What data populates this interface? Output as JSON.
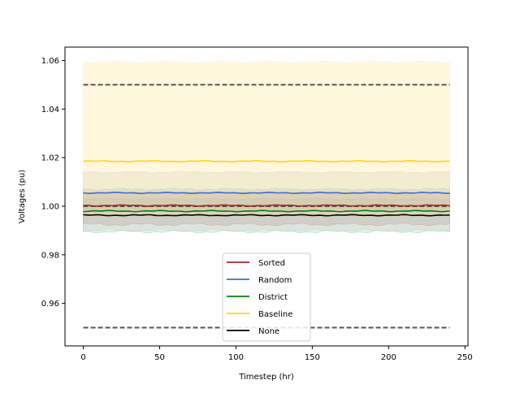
{
  "chart_data": {
    "type": "line",
    "xlabel": "Timestep (hr)",
    "ylabel": "Voltages (pu)",
    "xlim": [
      -12,
      252
    ],
    "ylim": [
      0.9425,
      1.0655
    ],
    "xticks": [
      0,
      50,
      100,
      150,
      200,
      250
    ],
    "yticks": [
      0.96,
      0.98,
      1.0,
      1.02,
      1.04,
      1.06
    ],
    "xtick_labels": [
      "0",
      "50",
      "100",
      "150",
      "200",
      "250"
    ],
    "ytick_labels": [
      "0.96",
      "0.98",
      "1.00",
      "1.02",
      "1.04",
      "1.06"
    ],
    "grid": false,
    "legend_position": "lower-center",
    "x_range": [
      0,
      240
    ],
    "series": [
      {
        "name": "Sorted",
        "color": "#b22222",
        "mean": 1.0003,
        "band": [
          0.9925,
          1.0055
        ],
        "band_color": "#b22222"
      },
      {
        "name": "Random",
        "color": "#4169e1",
        "mean": 1.0055,
        "band": [
          0.9985,
          1.014
        ],
        "band_color": "#808080"
      },
      {
        "name": "District",
        "color": "#008000",
        "mean": 0.998,
        "band": [
          0.9895,
          1.007
        ],
        "band_color": "#2e8b57"
      },
      {
        "name": "Baseline",
        "color": "#ffd700",
        "mean": 1.0185,
        "band": [
          0.9962,
          1.0595
        ],
        "band_color": "#ffe9a0"
      },
      {
        "name": "None",
        "color": "#000000",
        "mean": 0.9963,
        "band": [
          0.99,
          1.003
        ],
        "band_color": "#a9a9a9"
      }
    ],
    "reference_lines": [
      {
        "y": 1.05,
        "style": "dashed",
        "color": "#555555"
      },
      {
        "y": 1.0,
        "style": "dashed",
        "color": "#555555"
      },
      {
        "y": 0.95,
        "style": "dashed",
        "color": "#555555"
      }
    ]
  }
}
